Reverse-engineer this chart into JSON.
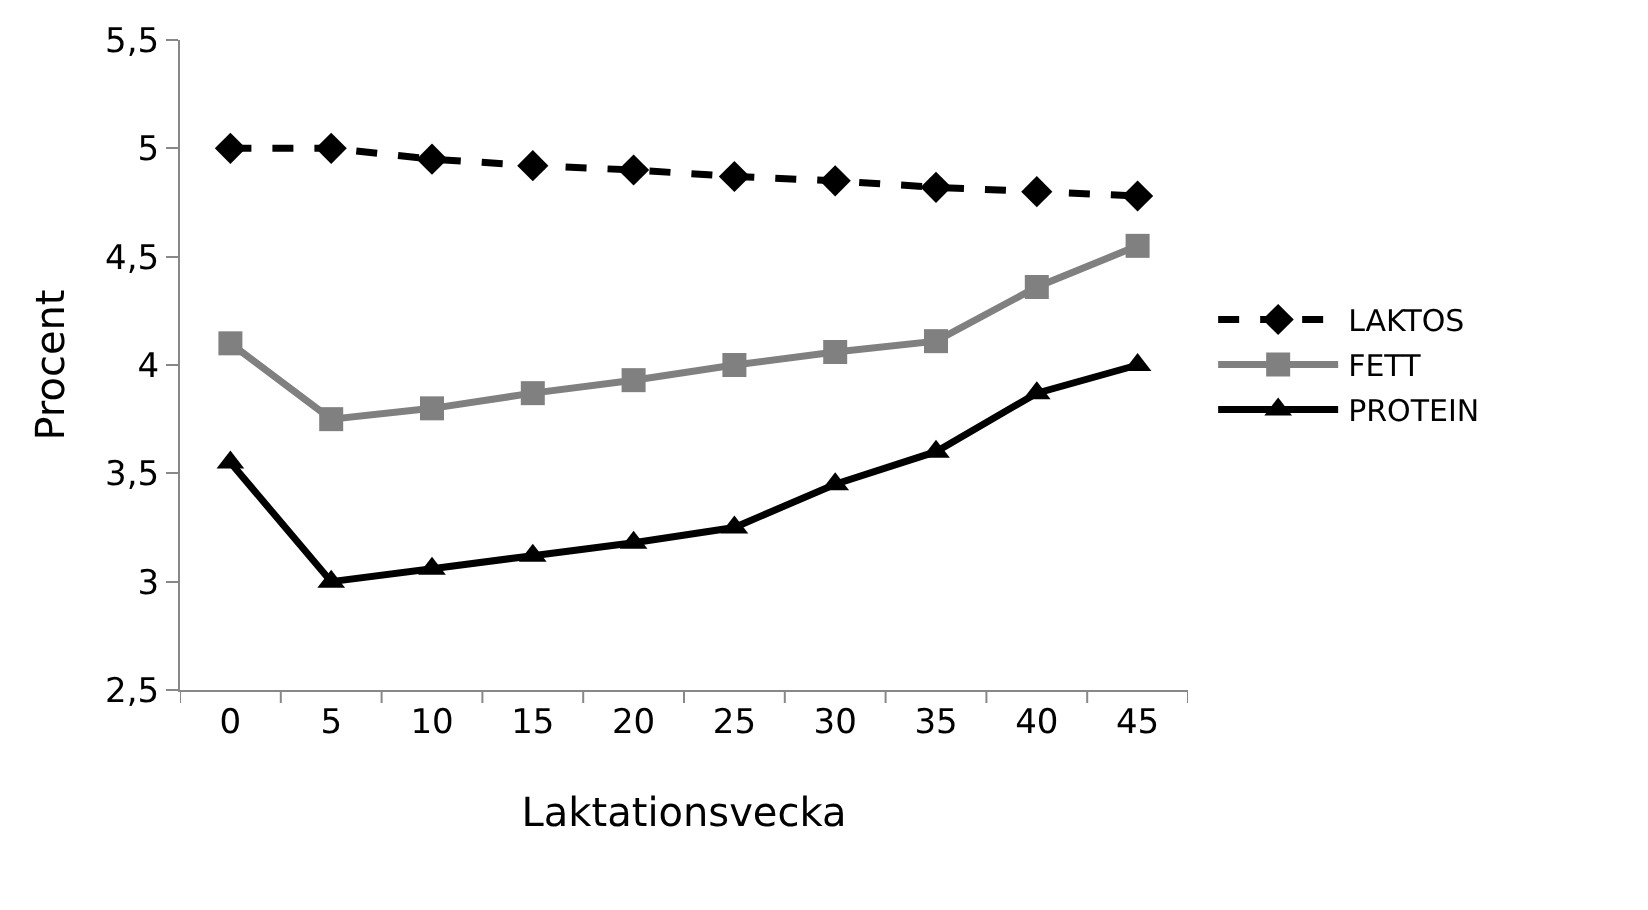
{
  "chart_data": {
    "type": "line",
    "xlabel": "Laktationsvecka",
    "ylabel": "Procent",
    "categories": [
      "0",
      "5",
      "10",
      "15",
      "20",
      "25",
      "30",
      "35",
      "40",
      "45"
    ],
    "series": [
      {
        "name": "LAKTOS",
        "color": "#000000",
        "line_style": "dashed",
        "marker": "diamond",
        "values": [
          5.0,
          5.0,
          4.95,
          4.92,
          4.9,
          4.87,
          4.85,
          4.82,
          4.8,
          4.78
        ]
      },
      {
        "name": "FETT",
        "color": "#808080",
        "line_style": "solid",
        "marker": "square",
        "values": [
          4.1,
          3.75,
          3.8,
          3.87,
          3.93,
          4.0,
          4.06,
          4.11,
          4.36,
          4.55
        ]
      },
      {
        "name": "PROTEIN",
        "color": "#000000",
        "line_style": "solid",
        "marker": "triangle",
        "values": [
          3.55,
          3.0,
          3.06,
          3.12,
          3.18,
          3.25,
          3.45,
          3.6,
          3.87,
          4.0
        ]
      }
    ],
    "ylim": [
      2.5,
      5.5
    ],
    "yticks": [
      {
        "value": 2.5,
        "label": "2,5"
      },
      {
        "value": 3,
        "label": "3"
      },
      {
        "value": 3.5,
        "label": "3,5"
      },
      {
        "value": 4,
        "label": "4"
      },
      {
        "value": 4.5,
        "label": "4,5"
      },
      {
        "value": 5,
        "label": "5"
      },
      {
        "value": 5.5,
        "label": "5,5"
      }
    ],
    "grid": false,
    "legend": "right"
  }
}
